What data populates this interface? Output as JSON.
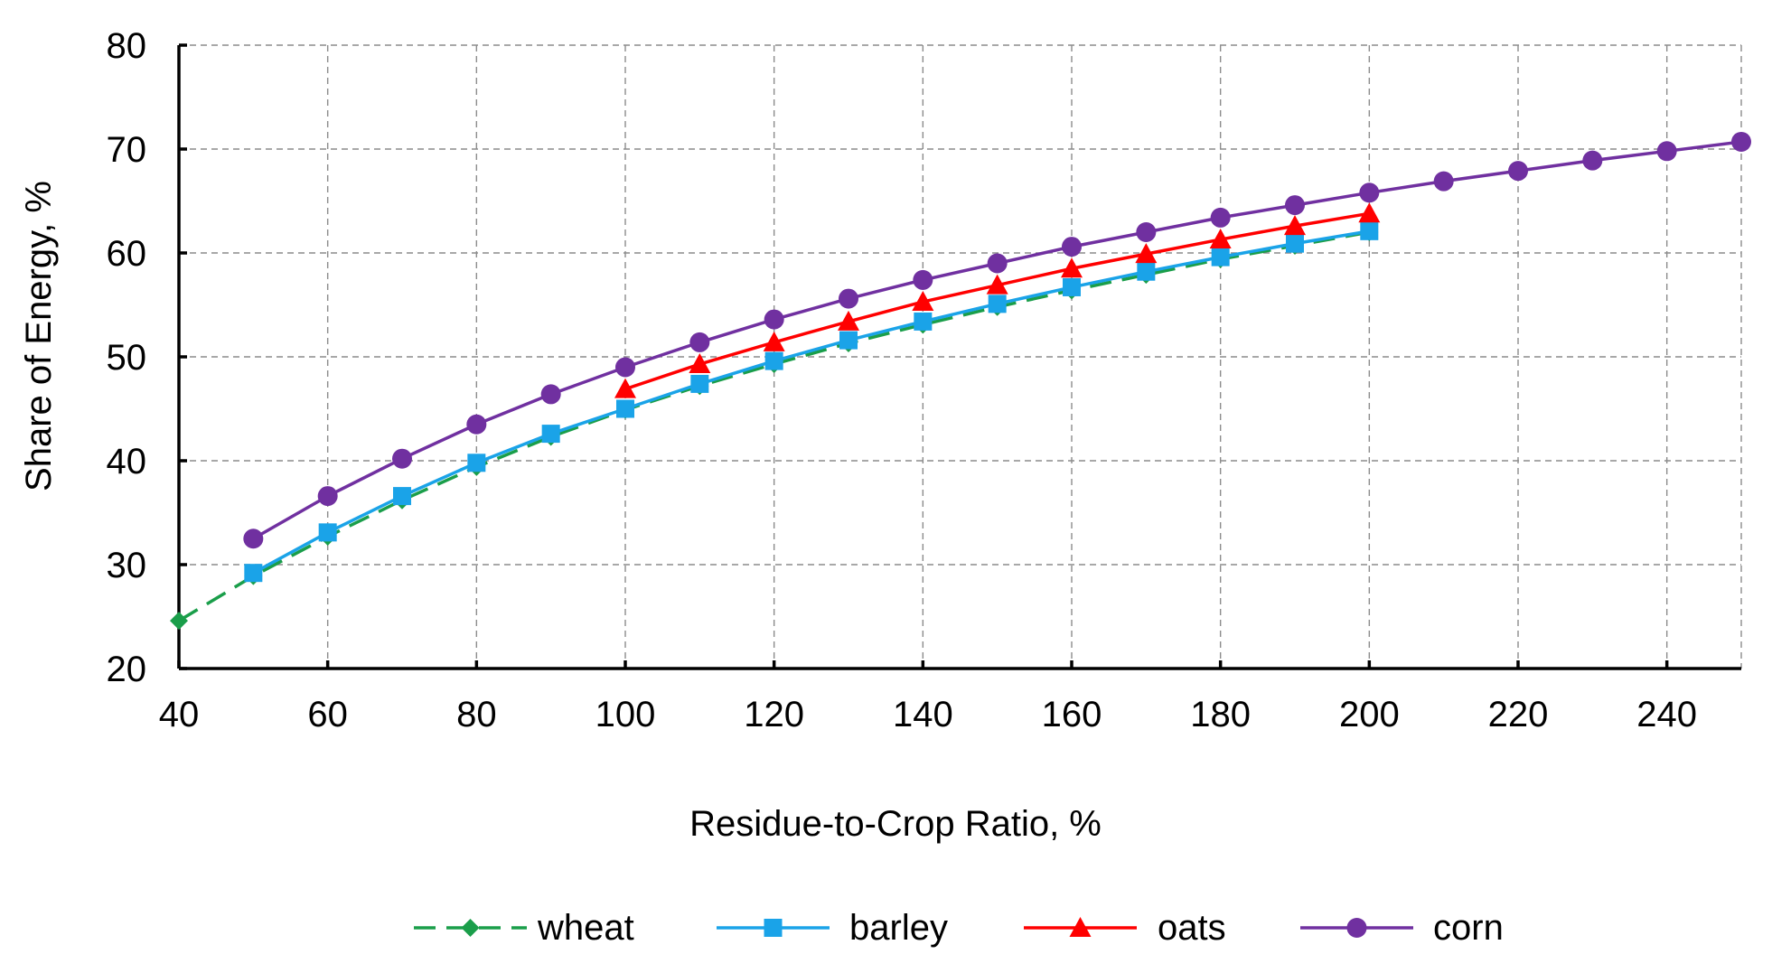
{
  "chart_data": {
    "type": "line",
    "title": "",
    "xlabel": "Residue-to-Crop Ratio, %",
    "ylabel": "Share of Energy, %",
    "xlim": [
      40,
      250
    ],
    "ylim": [
      20,
      80
    ],
    "x_ticks": [
      40,
      60,
      80,
      100,
      120,
      140,
      160,
      180,
      200,
      220,
      240
    ],
    "y_ticks": [
      20,
      30,
      40,
      50,
      60,
      70,
      80
    ],
    "x_tick_labels": [
      "40",
      "60",
      "80",
      "100",
      "120",
      "140",
      "160",
      "180",
      "200",
      "220",
      "240"
    ],
    "y_tick_labels": [
      "20",
      "30",
      "40",
      "50",
      "60",
      "70",
      "80"
    ],
    "grid": true,
    "legend_position": "bottom",
    "series": [
      {
        "name": "wheat",
        "color": "#1a9e4a",
        "marker": "diamond",
        "line_style": "dashed",
        "x": [
          40,
          50,
          60,
          70,
          80,
          90,
          100,
          110,
          120,
          130,
          140,
          150,
          160,
          170,
          180,
          190,
          200
        ],
        "values": [
          24.6,
          28.9,
          32.7,
          36.2,
          39.4,
          42.3,
          44.9,
          47.2,
          49.3,
          51.3,
          53.1,
          54.8,
          56.4,
          57.9,
          59.4,
          60.7,
          62.0
        ]
      },
      {
        "name": "barley",
        "color": "#1aa3e8",
        "marker": "square",
        "line_style": "solid",
        "x": [
          50,
          60,
          70,
          80,
          90,
          100,
          110,
          120,
          130,
          140,
          150,
          160,
          170,
          180,
          190,
          200
        ],
        "values": [
          29.2,
          33.1,
          36.6,
          39.8,
          42.6,
          45.0,
          47.4,
          49.6,
          51.6,
          53.4,
          55.1,
          56.7,
          58.2,
          59.6,
          60.9,
          62.1
        ]
      },
      {
        "name": "oats",
        "color": "#ff0000",
        "marker": "triangle",
        "line_style": "solid",
        "x": [
          100,
          110,
          120,
          130,
          140,
          150,
          160,
          170,
          180,
          190,
          200
        ],
        "values": [
          46.9,
          49.3,
          51.4,
          53.4,
          55.3,
          56.9,
          58.5,
          59.9,
          61.3,
          62.6,
          63.8
        ]
      },
      {
        "name": "corn",
        "color": "#7030a0",
        "marker": "circle",
        "line_style": "solid",
        "x": [
          50,
          60,
          70,
          80,
          90,
          100,
          110,
          120,
          130,
          140,
          150,
          160,
          170,
          180,
          190,
          200,
          210,
          220,
          230,
          240,
          250
        ],
        "values": [
          32.5,
          36.6,
          40.2,
          43.5,
          46.4,
          49.0,
          51.4,
          53.6,
          55.6,
          57.4,
          59.0,
          60.6,
          62.0,
          63.4,
          64.6,
          65.8,
          66.9,
          67.9,
          68.9,
          69.8,
          70.7
        ]
      }
    ]
  }
}
